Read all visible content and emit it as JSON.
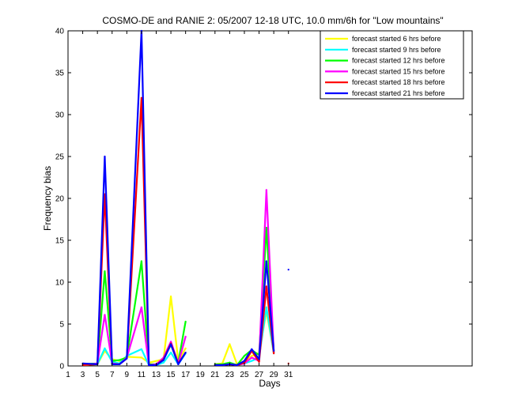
{
  "chart_data": {
    "type": "line",
    "title": "COSMO-DE and RANIE 2: 05/2007 12-18 UTC, 10.0 mm/6h for \"Low mountains\"",
    "xlabel": "Days",
    "ylabel": "Frequency bias",
    "xlim": [
      1,
      56
    ],
    "ylim": [
      0,
      40
    ],
    "xticks": [
      "1",
      "3",
      "5",
      "7",
      "9",
      "11",
      "13",
      "15",
      "17",
      "19",
      "21",
      "23",
      "25",
      "27",
      "29",
      "31"
    ],
    "yticks": [
      "0",
      "5",
      "10",
      "15",
      "20",
      "25",
      "30",
      "35",
      "40"
    ],
    "legend_position": "top-right",
    "grid": false,
    "series": [
      {
        "name": "forecast started 6 hrs before",
        "color": "#ffff00",
        "points": [
          [
            3,
            0.1
          ],
          [
            5,
            0.2
          ],
          [
            6,
            1.8
          ],
          [
            7,
            0.8
          ],
          [
            8,
            0.6
          ],
          [
            9,
            1.1
          ],
          [
            11,
            1.0
          ],
          [
            12,
            0.4
          ],
          [
            13,
            0.6
          ],
          [
            14,
            0.8
          ],
          [
            15,
            8.3
          ],
          [
            16,
            0.6
          ],
          [
            17,
            2.1
          ],
          [
            null,
            null
          ],
          [
            21,
            0.2
          ],
          [
            22,
            0.3
          ],
          [
            23,
            2.6
          ],
          [
            24,
            0.2
          ],
          [
            25,
            0.5
          ],
          [
            26,
            1.2
          ],
          [
            27,
            1.5
          ],
          [
            28,
            6.5
          ],
          [
            29,
            1.6
          ]
        ]
      },
      {
        "name": "forecast started 9 hrs before",
        "color": "#00ffff",
        "points": [
          [
            3,
            0.1
          ],
          [
            5,
            0.2
          ],
          [
            6,
            2.1
          ],
          [
            7,
            0.5
          ],
          [
            8,
            0.3
          ],
          [
            9,
            1.2
          ],
          [
            11,
            2.0
          ],
          [
            12,
            0.1
          ],
          [
            13,
            0.1
          ],
          [
            14,
            0.4
          ],
          [
            15,
            1.6
          ],
          [
            16,
            0.2
          ],
          [
            17,
            1.5
          ],
          [
            null,
            null
          ],
          [
            21,
            0.1
          ],
          [
            22,
            0.2
          ],
          [
            23,
            0.3
          ],
          [
            24,
            0.1
          ],
          [
            25,
            0.3
          ],
          [
            26,
            0.6
          ],
          [
            27,
            1.0
          ],
          [
            28,
            7.0
          ],
          [
            29,
            1.5
          ]
        ]
      },
      {
        "name": "forecast started 12 hrs before",
        "color": "#00ff00",
        "points": [
          [
            3,
            0.2
          ],
          [
            5,
            0.3
          ],
          [
            6,
            11.3
          ],
          [
            7,
            0.6
          ],
          [
            8,
            0.7
          ],
          [
            9,
            1.0
          ],
          [
            11,
            12.5
          ],
          [
            12,
            0.2
          ],
          [
            13,
            0.2
          ],
          [
            14,
            0.9
          ],
          [
            15,
            2.5
          ],
          [
            16,
            0.4
          ],
          [
            17,
            5.3
          ],
          [
            null,
            null
          ],
          [
            21,
            0.2
          ],
          [
            22,
            0.2
          ],
          [
            23,
            0.4
          ],
          [
            24,
            0.1
          ],
          [
            25,
            1.2
          ],
          [
            26,
            1.9
          ],
          [
            27,
            1.3
          ],
          [
            28,
            16.5
          ],
          [
            29,
            1.7
          ]
        ]
      },
      {
        "name": "forecast started 15 hrs before",
        "color": "#ff00ff",
        "points": [
          [
            3,
            0.1
          ],
          [
            5,
            0.3
          ],
          [
            6,
            6.1
          ],
          [
            7,
            0.3
          ],
          [
            8,
            0.2
          ],
          [
            9,
            1.0
          ],
          [
            11,
            7.0
          ],
          [
            12,
            0.1
          ],
          [
            13,
            0.2
          ],
          [
            14,
            1.0
          ],
          [
            15,
            2.9
          ],
          [
            16,
            0.3
          ],
          [
            17,
            3.5
          ],
          [
            null,
            null
          ],
          [
            21,
            0.1
          ],
          [
            22,
            0.1
          ],
          [
            23,
            0.2
          ],
          [
            24,
            0.1
          ],
          [
            25,
            0.3
          ],
          [
            26,
            1.0
          ],
          [
            27,
            0.6
          ],
          [
            28,
            21.0
          ],
          [
            29,
            1.6
          ]
        ]
      },
      {
        "name": "forecast started 18 hrs before",
        "color": "#ff0000",
        "points": [
          [
            3,
            0.1
          ],
          [
            5,
            0.2
          ],
          [
            6,
            20.5
          ],
          [
            7,
            0.2
          ],
          [
            8,
            0.2
          ],
          [
            9,
            0.9
          ],
          [
            11,
            32.0
          ],
          [
            12,
            0.1
          ],
          [
            13,
            0.1
          ],
          [
            14,
            0.8
          ],
          [
            15,
            2.7
          ],
          [
            16,
            0.3
          ],
          [
            17,
            1.6
          ],
          [
            null,
            null
          ],
          [
            21,
            0.1
          ],
          [
            22,
            0.1
          ],
          [
            23,
            0.2
          ],
          [
            24,
            0.1
          ],
          [
            25,
            0.4
          ],
          [
            26,
            1.8
          ],
          [
            27,
            0.5
          ],
          [
            28,
            9.5
          ],
          [
            29,
            1.5
          ],
          [
            null,
            null
          ],
          [
            31,
            0.3
          ]
        ]
      },
      {
        "name": "forecast started 21 hrs before",
        "color": "#0000ff",
        "points": [
          [
            3,
            0.3
          ],
          [
            5,
            0.2
          ],
          [
            6,
            25.0
          ],
          [
            7,
            0.2
          ],
          [
            8,
            0.2
          ],
          [
            9,
            0.9
          ],
          [
            11,
            40.0
          ],
          [
            12,
            0.1
          ],
          [
            13,
            0.1
          ],
          [
            14,
            0.7
          ],
          [
            15,
            2.6
          ],
          [
            16,
            0.2
          ],
          [
            17,
            1.6
          ],
          [
            null,
            null
          ],
          [
            21,
            0.1
          ],
          [
            22,
            0.1
          ],
          [
            23,
            0.2
          ],
          [
            24,
            0.1
          ],
          [
            25,
            0.6
          ],
          [
            26,
            2.0
          ],
          [
            27,
            0.8
          ],
          [
            28,
            12.5
          ],
          [
            29,
            1.8
          ],
          [
            null,
            null
          ],
          [
            31,
            11.5
          ]
        ]
      }
    ]
  }
}
